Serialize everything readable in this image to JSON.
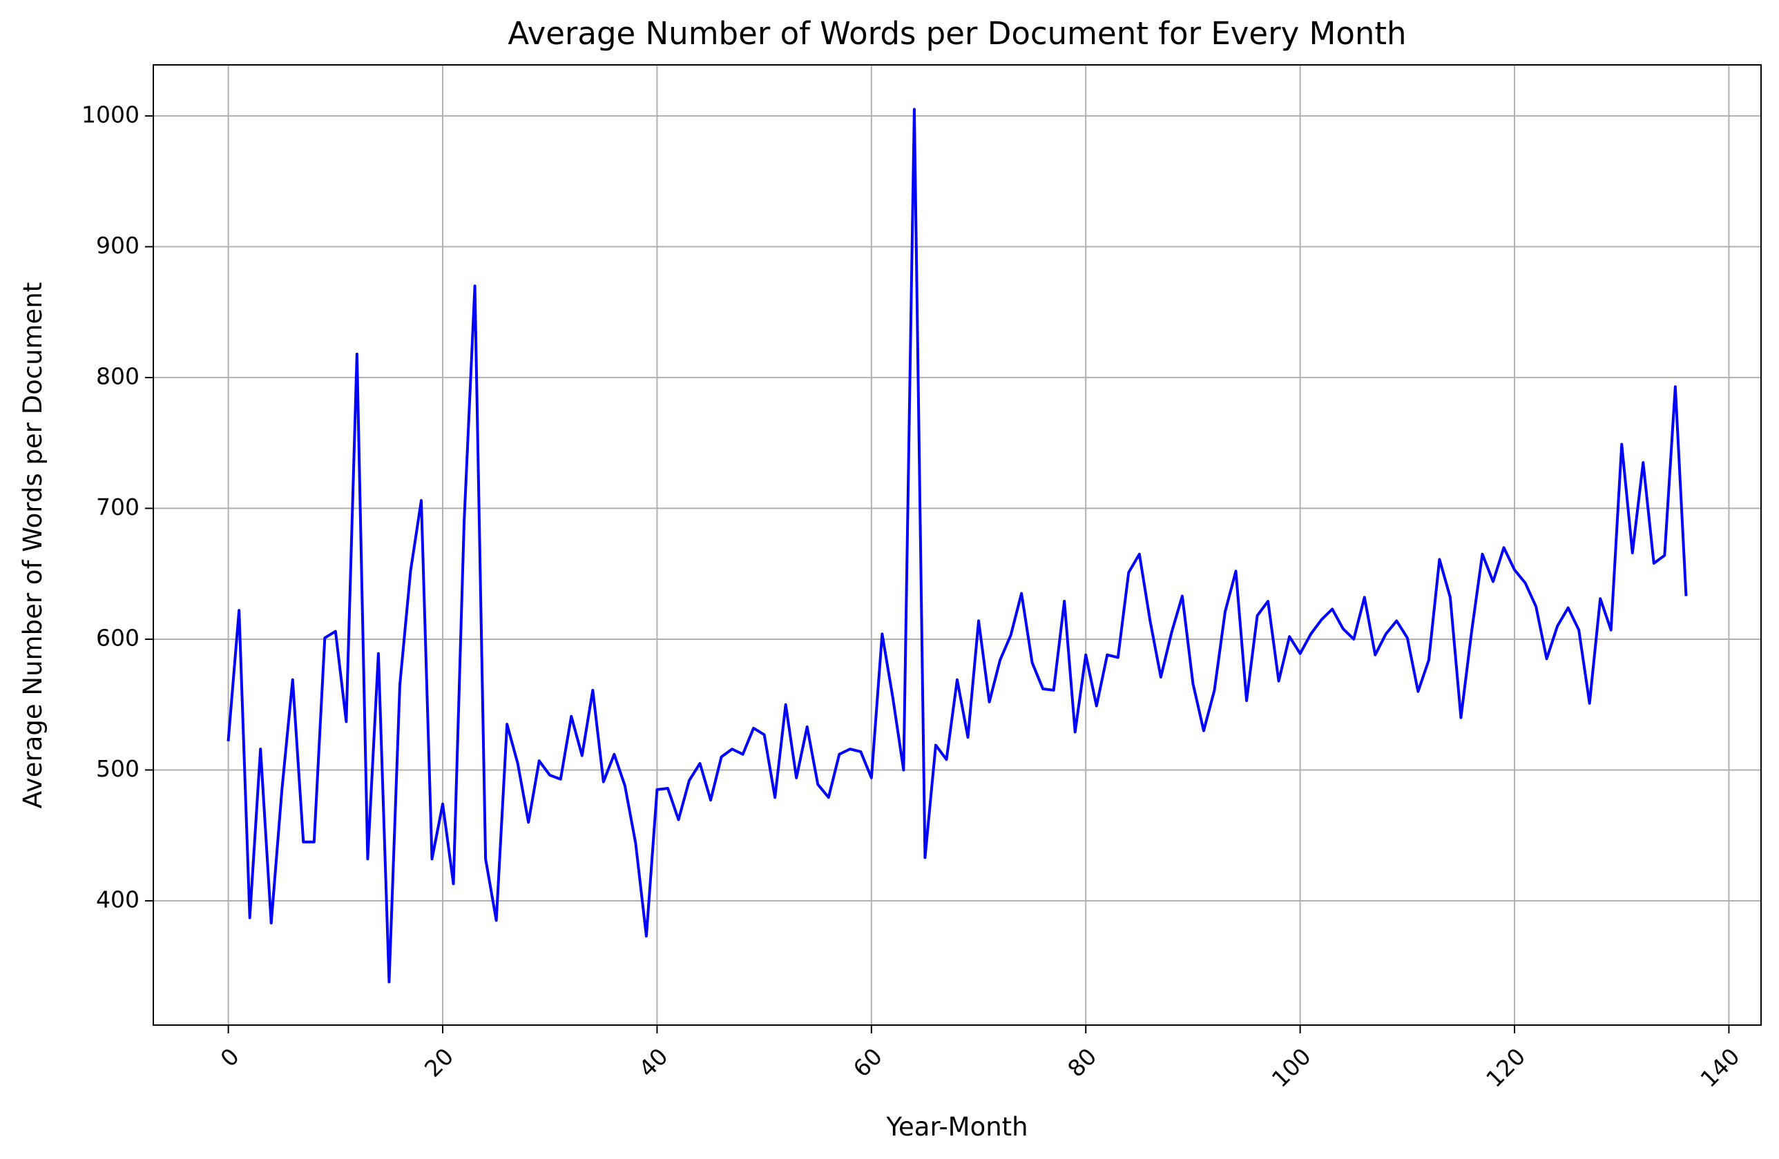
{
  "chart_data": {
    "type": "line",
    "title": "Average Number of Words per Document for Every Month",
    "xlabel": "Year-Month",
    "ylabel": "Average Number of Words per Document",
    "xlim": [
      -7,
      143
    ],
    "ylim": [
      305,
      1039
    ],
    "xticks": [
      0,
      20,
      40,
      60,
      80,
      100,
      120,
      140
    ],
    "yticks": [
      400,
      500,
      600,
      700,
      800,
      900,
      1000
    ],
    "xtick_rotation": 45,
    "grid": true,
    "legend": "none",
    "series": [
      {
        "color": "#0000ff",
        "x": [
          0,
          1,
          2,
          3,
          4,
          5,
          6,
          7,
          8,
          9,
          10,
          11,
          12,
          13,
          14,
          15,
          16,
          17,
          18,
          19,
          20,
          21,
          22,
          23,
          24,
          25,
          26,
          27,
          28,
          29,
          30,
          31,
          32,
          33,
          34,
          35,
          36,
          37,
          38,
          39,
          40,
          41,
          42,
          43,
          44,
          45,
          46,
          47,
          48,
          49,
          50,
          51,
          52,
          53,
          54,
          55,
          56,
          57,
          58,
          59,
          60,
          61,
          62,
          63,
          64,
          65,
          66,
          67,
          68,
          69,
          70,
          71,
          72,
          73,
          74,
          75,
          76,
          77,
          78,
          79,
          80,
          81,
          82,
          83,
          84,
          85,
          86,
          87,
          88,
          89,
          90,
          91,
          92,
          93,
          94,
          95,
          96,
          97,
          98,
          99,
          100,
          101,
          102,
          103,
          104,
          105,
          106,
          107,
          108,
          109,
          110,
          111,
          112,
          113,
          114,
          115,
          116,
          117,
          118,
          119,
          120,
          121,
          122,
          123,
          124,
          125,
          126,
          127,
          128,
          129,
          130,
          131,
          132,
          133,
          134,
          135,
          136
        ],
        "y": [
          523,
          622,
          387,
          516,
          383,
          485,
          569,
          445,
          445,
          601,
          606,
          537,
          818,
          432,
          589,
          338,
          565,
          652,
          706,
          432,
          474,
          413,
          690,
          870,
          432,
          385,
          535,
          505,
          460,
          507,
          496,
          493,
          541,
          511,
          561,
          491,
          512,
          488,
          444,
          373,
          485,
          486,
          462,
          492,
          505,
          477,
          510,
          516,
          512,
          532,
          527,
          479,
          550,
          494,
          533,
          489,
          479,
          512,
          516,
          514,
          494,
          604,
          555,
          500,
          1005,
          433,
          519,
          508,
          569,
          525,
          614,
          552,
          584,
          603,
          635,
          582,
          562,
          561,
          629,
          529,
          588,
          549,
          588,
          586,
          651,
          665,
          614,
          571,
          605,
          633,
          566,
          530,
          561,
          621,
          652,
          553,
          618,
          629,
          568,
          602,
          589,
          604,
          615,
          623,
          608,
          600,
          632,
          588,
          604,
          614,
          601,
          560,
          584,
          661,
          632,
          540,
          606,
          665,
          644,
          670,
          653,
          643,
          625,
          585,
          610,
          624,
          607,
          551,
          631,
          607,
          749,
          666,
          735,
          658,
          664,
          793,
          634
        ]
      }
    ]
  }
}
